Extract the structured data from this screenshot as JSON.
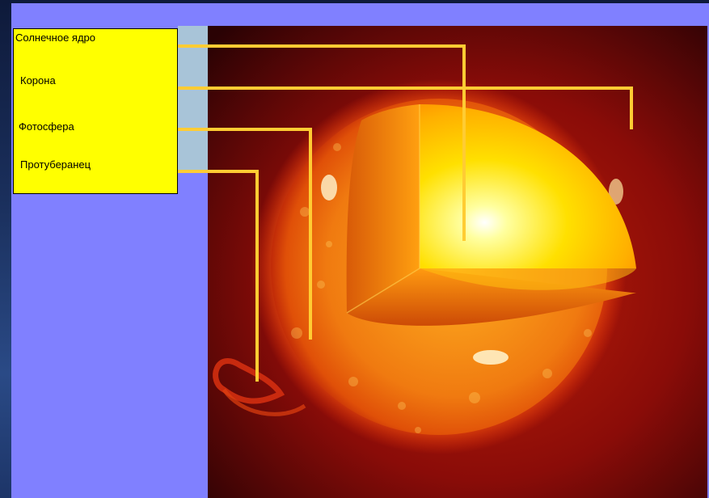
{
  "labels": {
    "core": "Солнечное ядро",
    "corona": "Корона",
    "photosphere": "Фотосфера",
    "prominence": "Протуберанец"
  },
  "colors": {
    "slide_background": "#8080ff",
    "label_box": "#ffff00",
    "leader_lines": "#ffcc33"
  }
}
